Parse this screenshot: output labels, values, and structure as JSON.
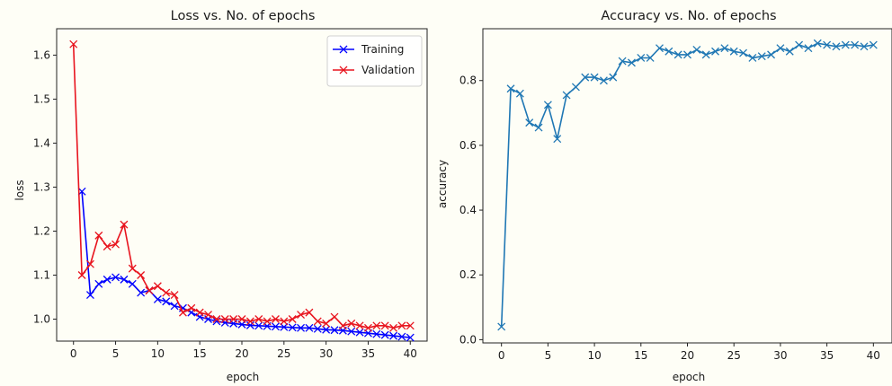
{
  "chart_data": [
    {
      "type": "line",
      "title": "Loss vs. No. of epochs",
      "xlabel": "epoch",
      "ylabel": "loss",
      "xlim": [
        -2,
        42
      ],
      "ylim": [
        0.95,
        1.66
      ],
      "xticks": [
        0,
        5,
        10,
        15,
        20,
        25,
        30,
        35,
        40
      ],
      "yticks": [
        1.0,
        1.1,
        1.2,
        1.3,
        1.4,
        1.5,
        1.6
      ],
      "legend_position": "top-right",
      "grid": false,
      "series": [
        {
          "name": "Training",
          "color": "#0000ff",
          "marker": "x",
          "x": [
            1,
            2,
            3,
            4,
            5,
            6,
            7,
            8,
            9,
            10,
            11,
            12,
            13,
            14,
            15,
            16,
            17,
            18,
            19,
            20,
            21,
            22,
            23,
            24,
            25,
            26,
            27,
            28,
            29,
            30,
            31,
            32,
            33,
            34,
            35,
            36,
            37,
            38,
            39,
            40
          ],
          "values": [
            1.29,
            1.055,
            1.08,
            1.09,
            1.095,
            1.09,
            1.08,
            1.06,
            1.065,
            1.045,
            1.04,
            1.03,
            1.025,
            1.015,
            1.005,
            1.0,
            0.995,
            0.992,
            0.99,
            0.988,
            0.986,
            0.985,
            0.984,
            0.983,
            0.982,
            0.981,
            0.98,
            0.98,
            0.978,
            0.976,
            0.975,
            0.974,
            0.972,
            0.97,
            0.968,
            0.966,
            0.964,
            0.962,
            0.96,
            0.958
          ]
        },
        {
          "name": "Validation",
          "color": "#e8141e",
          "marker": "x",
          "x": [
            0,
            1,
            2,
            3,
            4,
            5,
            6,
            7,
            8,
            9,
            10,
            11,
            12,
            13,
            14,
            15,
            16,
            17,
            18,
            19,
            20,
            21,
            22,
            23,
            24,
            25,
            26,
            27,
            28,
            29,
            30,
            31,
            32,
            33,
            34,
            35,
            36,
            37,
            38,
            39,
            40
          ],
          "values": [
            1.625,
            1.1,
            1.125,
            1.19,
            1.165,
            1.17,
            1.215,
            1.115,
            1.1,
            1.065,
            1.075,
            1.06,
            1.055,
            1.015,
            1.025,
            1.015,
            1.01,
            1.0,
            1.0,
            1.0,
            1.0,
            0.995,
            1.0,
            0.995,
            1.0,
            0.995,
            1.0,
            1.01,
            1.015,
            0.995,
            0.99,
            1.005,
            0.985,
            0.99,
            0.985,
            0.98,
            0.985,
            0.985,
            0.98,
            0.985,
            0.985
          ]
        }
      ]
    },
    {
      "type": "line",
      "title": "Accuracy vs. No. of epochs",
      "xlabel": "epoch",
      "ylabel": "accuracy",
      "xlim": [
        -2,
        42
      ],
      "ylim": [
        -0.01,
        0.96
      ],
      "xticks": [
        0,
        5,
        10,
        15,
        20,
        25,
        30,
        35,
        40
      ],
      "yticks": [
        0.0,
        0.2,
        0.4,
        0.6,
        0.8
      ],
      "grid": false,
      "series": [
        {
          "color": "#1f77b4",
          "marker": "x",
          "x": [
            0,
            1,
            2,
            3,
            4,
            5,
            6,
            7,
            8,
            9,
            10,
            11,
            12,
            13,
            14,
            15,
            16,
            17,
            18,
            19,
            20,
            21,
            22,
            23,
            24,
            25,
            26,
            27,
            28,
            29,
            30,
            31,
            32,
            33,
            34,
            35,
            36,
            37,
            38,
            39,
            40
          ],
          "values": [
            0.04,
            0.775,
            0.76,
            0.67,
            0.655,
            0.725,
            0.62,
            0.755,
            0.78,
            0.81,
            0.81,
            0.8,
            0.81,
            0.86,
            0.855,
            0.87,
            0.87,
            0.9,
            0.89,
            0.88,
            0.88,
            0.895,
            0.88,
            0.89,
            0.9,
            0.89,
            0.885,
            0.87,
            0.875,
            0.88,
            0.9,
            0.89,
            0.91,
            0.9,
            0.915,
            0.91,
            0.905,
            0.91,
            0.91,
            0.905,
            0.91
          ]
        }
      ]
    }
  ]
}
